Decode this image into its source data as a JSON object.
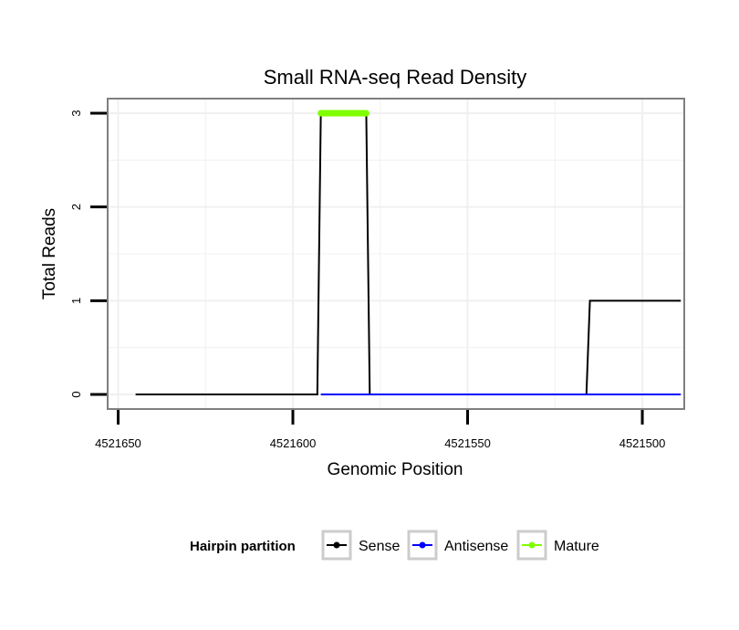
{
  "chart_data": {
    "type": "line",
    "title": "Small RNA-seq Read Density",
    "xlabel": "Genomic Position",
    "ylabel": "Total Reads",
    "x_reversed": true,
    "xlim": [
      4521653,
      4521488
    ],
    "ylim": [
      0,
      3
    ],
    "x_ticks": [
      4521650,
      4521600,
      4521550,
      4521500
    ],
    "x_tick_labels": [
      "4521650",
      "4521600",
      "4521550",
      "4521500"
    ],
    "y_ticks": [
      0,
      1,
      2,
      3
    ],
    "y_tick_labels": [
      "0",
      "1",
      "2",
      "3"
    ],
    "grid": true,
    "legend": {
      "title": "Hairpin partition",
      "position": "bottom",
      "entries": [
        {
          "name": "Sense",
          "color": "#000000"
        },
        {
          "name": "Antisense",
          "color": "#0000ff"
        },
        {
          "name": "Mature",
          "color": "#7fff00"
        }
      ]
    },
    "series": [
      {
        "name": "Sense",
        "color": "#000000",
        "x": [
          4521645,
          4521593,
          4521592,
          4521579,
          4521578,
          4521516,
          4521515,
          4521489
        ],
        "y": [
          0,
          0,
          3,
          3,
          0,
          0,
          1,
          1
        ]
      },
      {
        "name": "Antisense",
        "color": "#0000ff",
        "x": [
          4521592,
          4521489
        ],
        "y": [
          0,
          0
        ]
      },
      {
        "name": "Mature",
        "color": "#7fff00",
        "x": [
          4521592,
          4521579
        ],
        "y": [
          3,
          3
        ]
      }
    ]
  }
}
